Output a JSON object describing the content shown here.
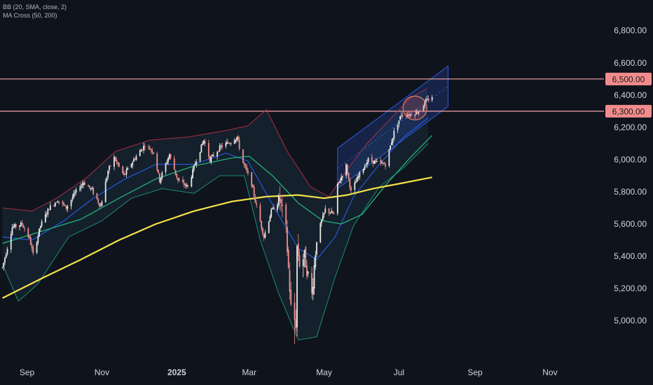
{
  "indicators": [
    "BB (20, SMA, close, 2)",
    "MA Cross (50, 200)"
  ],
  "colors": {
    "background": "#0f131c",
    "axis_text": "#d1d4dc",
    "candle_up": "#e8e8e8",
    "candle_down": "#f0908d",
    "bb_upper": "#a8303f",
    "bb_lower": "#1e8a70",
    "bb_basis": "#2962ff",
    "ma50": "#24b27a",
    "ma200": "#f5e04a",
    "hline": "#f7a6a6",
    "channel": "#2f5bd8"
  },
  "chart_data": {
    "type": "candlestick",
    "title": "",
    "y_ticks": [
      5000,
      5200,
      5400,
      5600,
      5800,
      6000,
      6200,
      6400,
      6600,
      6800
    ],
    "x_ticks": [
      {
        "label": "Sep",
        "date": "2024-09-01"
      },
      {
        "label": "Nov",
        "date": "2024-11-01"
      },
      {
        "label": "2025",
        "date": "2025-01-01"
      },
      {
        "label": "Mar",
        "date": "2025-03-01"
      },
      {
        "label": "May",
        "date": "2025-05-01"
      },
      {
        "label": "Jul",
        "date": "2025-07-01"
      },
      {
        "label": "Sep",
        "date": "2025-09-01"
      },
      {
        "label": "Nov",
        "date": "2025-11-01"
      }
    ],
    "x_range": [
      "2024-08-10",
      "2025-12-15"
    ],
    "y_range": [
      4840,
      6990
    ],
    "horizontal_levels": [
      6500,
      6300
    ],
    "price_labels": [
      "6,500.00",
      "6,300.00"
    ],
    "series": [
      {
        "name": "Price",
        "points": [
          [
            "2024-08-12",
            5330
          ],
          [
            "2024-08-20",
            5580
          ],
          [
            "2024-08-28",
            5600
          ],
          [
            "2024-09-03",
            5510
          ],
          [
            "2024-09-06",
            5410
          ],
          [
            "2024-09-12",
            5590
          ],
          [
            "2024-09-19",
            5700
          ],
          [
            "2024-09-26",
            5750
          ],
          [
            "2024-10-03",
            5700
          ],
          [
            "2024-10-10",
            5790
          ],
          [
            "2024-10-17",
            5860
          ],
          [
            "2024-10-24",
            5810
          ],
          [
            "2024-10-31",
            5710
          ],
          [
            "2024-11-06",
            5930
          ],
          [
            "2024-11-11",
            6010
          ],
          [
            "2024-11-19",
            5900
          ],
          [
            "2024-11-27",
            6000
          ],
          [
            "2024-12-06",
            6090
          ],
          [
            "2024-12-13",
            6050
          ],
          [
            "2024-12-18",
            5870
          ],
          [
            "2024-12-26",
            6030
          ],
          [
            "2025-01-02",
            5870
          ],
          [
            "2025-01-10",
            5830
          ],
          [
            "2025-01-17",
            6000
          ],
          [
            "2025-01-23",
            6120
          ],
          [
            "2025-01-28",
            6000
          ],
          [
            "2025-02-06",
            6080
          ],
          [
            "2025-02-14",
            6110
          ],
          [
            "2025-02-19",
            6140
          ],
          [
            "2025-02-24",
            5980
          ],
          [
            "2025-03-03",
            5850
          ],
          [
            "2025-03-06",
            5740
          ],
          [
            "2025-03-13",
            5520
          ],
          [
            "2025-03-19",
            5680
          ],
          [
            "2025-03-26",
            5750
          ],
          [
            "2025-03-31",
            5560
          ],
          [
            "2025-04-04",
            5080
          ],
          [
            "2025-04-08",
            4980
          ],
          [
            "2025-04-09",
            5460
          ],
          [
            "2025-04-11",
            5360
          ],
          [
            "2025-04-15",
            5400
          ],
          [
            "2025-04-21",
            5160
          ],
          [
            "2025-04-25",
            5520
          ],
          [
            "2025-05-02",
            5690
          ],
          [
            "2025-05-09",
            5660
          ],
          [
            "2025-05-12",
            5840
          ],
          [
            "2025-05-19",
            5960
          ],
          [
            "2025-05-23",
            5800
          ],
          [
            "2025-05-30",
            5910
          ],
          [
            "2025-06-06",
            6000
          ],
          [
            "2025-06-13",
            5980
          ],
          [
            "2025-06-20",
            5970
          ],
          [
            "2025-06-27",
            6170
          ],
          [
            "2025-07-03",
            6280
          ],
          [
            "2025-07-10",
            6280
          ],
          [
            "2025-07-17",
            6300
          ],
          [
            "2025-07-23",
            6360
          ],
          [
            "2025-07-28",
            6390
          ]
        ]
      },
      {
        "name": "BB upper",
        "points": [
          [
            "2024-08-12",
            5700
          ],
          [
            "2024-09-05",
            5680
          ],
          [
            "2024-09-25",
            5760
          ],
          [
            "2024-10-20",
            5890
          ],
          [
            "2024-11-12",
            6050
          ],
          [
            "2024-12-10",
            6120
          ],
          [
            "2025-01-10",
            6140
          ],
          [
            "2025-02-10",
            6180
          ],
          [
            "2025-02-28",
            6210
          ],
          [
            "2025-03-15",
            6310
          ],
          [
            "2025-04-01",
            6050
          ],
          [
            "2025-04-20",
            5830
          ],
          [
            "2025-05-05",
            5770
          ],
          [
            "2025-05-20",
            5940
          ],
          [
            "2025-06-05",
            6100
          ],
          [
            "2025-06-25",
            6260
          ],
          [
            "2025-07-10",
            6380
          ],
          [
            "2025-07-24",
            6440
          ]
        ]
      },
      {
        "name": "BB lower",
        "points": [
          [
            "2024-08-12",
            5350
          ],
          [
            "2024-08-25",
            5120
          ],
          [
            "2024-09-10",
            5230
          ],
          [
            "2024-10-05",
            5520
          ],
          [
            "2024-11-01",
            5620
          ],
          [
            "2024-11-25",
            5760
          ],
          [
            "2024-12-20",
            5820
          ],
          [
            "2025-01-15",
            5790
          ],
          [
            "2025-02-05",
            5900
          ],
          [
            "2025-02-25",
            5900
          ],
          [
            "2025-03-10",
            5500
          ],
          [
            "2025-03-25",
            5170
          ],
          [
            "2025-04-10",
            4880
          ],
          [
            "2025-04-25",
            4900
          ],
          [
            "2025-05-10",
            5270
          ],
          [
            "2025-05-25",
            5590
          ],
          [
            "2025-06-15",
            5830
          ],
          [
            "2025-07-05",
            5950
          ],
          [
            "2025-07-25",
            6100
          ]
        ]
      },
      {
        "name": "BB basis",
        "points": [
          [
            "2024-08-12",
            5520
          ],
          [
            "2024-09-05",
            5500
          ],
          [
            "2024-10-01",
            5620
          ],
          [
            "2024-10-25",
            5760
          ],
          [
            "2024-11-20",
            5880
          ],
          [
            "2024-12-15",
            5970
          ],
          [
            "2025-01-15",
            5970
          ],
          [
            "2025-02-10",
            6040
          ],
          [
            "2025-02-28",
            5990
          ],
          [
            "2025-03-20",
            5720
          ],
          [
            "2025-04-10",
            5450
          ],
          [
            "2025-04-25",
            5380
          ],
          [
            "2025-05-10",
            5520
          ],
          [
            "2025-05-25",
            5770
          ],
          [
            "2025-06-15",
            5970
          ],
          [
            "2025-07-05",
            6140
          ],
          [
            "2025-07-25",
            6260
          ]
        ]
      },
      {
        "name": "MA 50",
        "points": [
          [
            "2024-08-12",
            5480
          ],
          [
            "2024-09-15",
            5560
          ],
          [
            "2024-10-15",
            5630
          ],
          [
            "2024-11-15",
            5760
          ],
          [
            "2024-12-15",
            5880
          ],
          [
            "2025-01-15",
            5960
          ],
          [
            "2025-02-15",
            6010
          ],
          [
            "2025-03-01",
            6020
          ],
          [
            "2025-03-20",
            5900
          ],
          [
            "2025-04-10",
            5730
          ],
          [
            "2025-04-30",
            5620
          ],
          [
            "2025-05-15",
            5600
          ],
          [
            "2025-06-01",
            5660
          ],
          [
            "2025-06-20",
            5840
          ],
          [
            "2025-07-10",
            6010
          ],
          [
            "2025-07-28",
            6150
          ]
        ]
      },
      {
        "name": "MA 200",
        "points": [
          [
            "2024-08-12",
            5140
          ],
          [
            "2024-09-15",
            5270
          ],
          [
            "2024-10-15",
            5380
          ],
          [
            "2024-11-15",
            5500
          ],
          [
            "2024-12-15",
            5600
          ],
          [
            "2025-01-15",
            5680
          ],
          [
            "2025-02-15",
            5740
          ],
          [
            "2025-03-15",
            5770
          ],
          [
            "2025-04-10",
            5780
          ],
          [
            "2025-05-01",
            5760
          ],
          [
            "2025-05-20",
            5780
          ],
          [
            "2025-06-10",
            5820
          ],
          [
            "2025-07-01",
            5850
          ],
          [
            "2025-07-28",
            5890
          ]
        ]
      }
    ]
  }
}
